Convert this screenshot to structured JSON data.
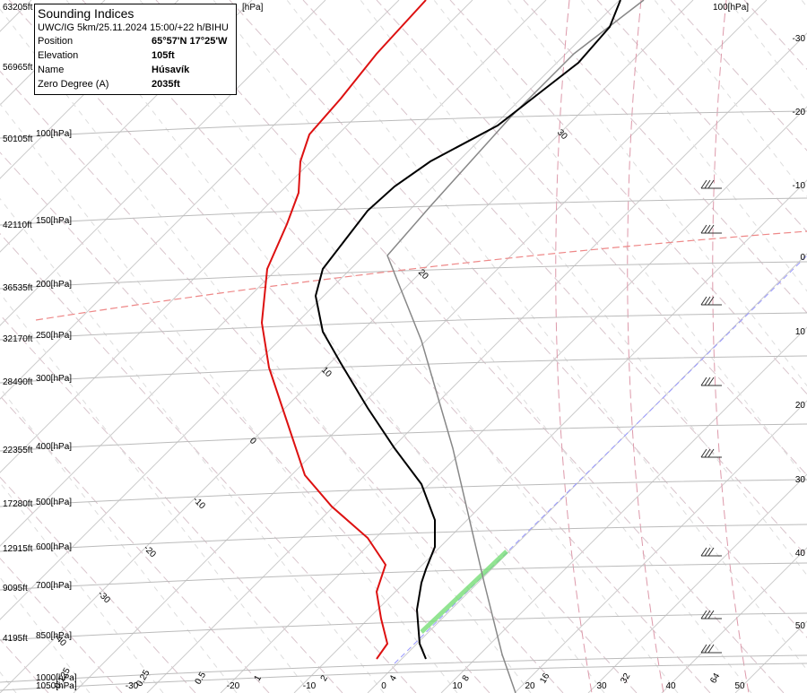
{
  "info": {
    "title": "Sounding Indices",
    "subtitle": "UWC/IG 5km/25.11.2024 15:00/+22 h/BIHU",
    "rows": [
      [
        "Position",
        "65°57'N 17°25'W"
      ],
      [
        "Elevation",
        "105ft"
      ],
      [
        "Name",
        "Húsavík"
      ],
      [
        "Zero Degree (A)",
        "2035ft"
      ]
    ]
  },
  "altitudes": [
    "63205ft",
    "56965ft",
    "50105ft",
    "42110ft",
    "36535ft",
    "32170ft",
    "28490ft",
    "22355ft",
    "17280ft",
    "12915ft",
    "9095ft",
    "4195ft"
  ],
  "pressures": [
    "100[hPa]",
    "150[hPa]",
    "200[hPa]",
    "250[hPa]",
    "300[hPa]",
    "400[hPa]",
    "500[hPa]",
    "600[hPa]",
    "700[hPa]",
    "850[hPa]",
    "1000[hPa]",
    "1050[hPa]"
  ],
  "top_labels": [
    "[hPa]",
    "100[hPa]"
  ],
  "right_labels": [
    "-30",
    "-20",
    "-10",
    "0",
    "10",
    "20",
    "30",
    "40",
    "50"
  ],
  "bottom_temps": [
    "-30",
    "-20",
    "-10",
    "0",
    "10",
    "20",
    "30",
    "40",
    "50"
  ],
  "mixing_ratios": [
    "0.125",
    "0.25",
    "0.5",
    "1",
    "2",
    "4",
    "8",
    "16",
    "32",
    "64"
  ],
  "adiabat_labels": [
    "30",
    "20",
    "10",
    "0",
    "-10",
    "-20",
    "-30",
    "-40"
  ]
}
